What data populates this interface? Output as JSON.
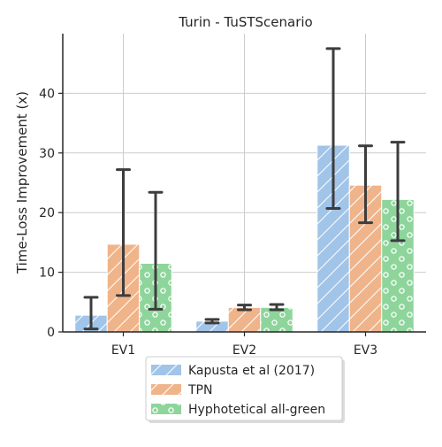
{
  "chart_data": {
    "type": "bar",
    "title": "Turin - TuSTScenario",
    "xlabel": "",
    "ylabel": "Time-Loss Improvement (x)",
    "ylim": [
      0,
      50
    ],
    "yticks": [
      0,
      10,
      20,
      30,
      40
    ],
    "grid": true,
    "categories": [
      "EV1",
      "EV2",
      "EV3"
    ],
    "legend_position": "bottom-center, below axes",
    "series": [
      {
        "name": "Kapusta et al (2017)",
        "color": "#a1c4e9",
        "hatch": "diagonal-lines",
        "values": [
          2.8,
          1.8,
          31.3
        ],
        "error_low": [
          0.5,
          1.5,
          20.7
        ],
        "error_high": [
          5.8,
          2.1,
          47.5
        ]
      },
      {
        "name": "TPN",
        "color": "#f0b48a",
        "hatch": "diagonal-lines",
        "values": [
          14.7,
          4.1,
          24.6
        ],
        "error_low": [
          6.1,
          3.7,
          18.3
        ],
        "error_high": [
          27.2,
          4.5,
          31.2
        ]
      },
      {
        "name": "Hyphotetical all-green",
        "color": "#8ed59c",
        "hatch": "circles",
        "values": [
          11.5,
          4.1,
          22.2
        ],
        "error_low": [
          3.8,
          3.7,
          15.3
        ],
        "error_high": [
          23.4,
          4.6,
          31.8
        ]
      }
    ]
  }
}
